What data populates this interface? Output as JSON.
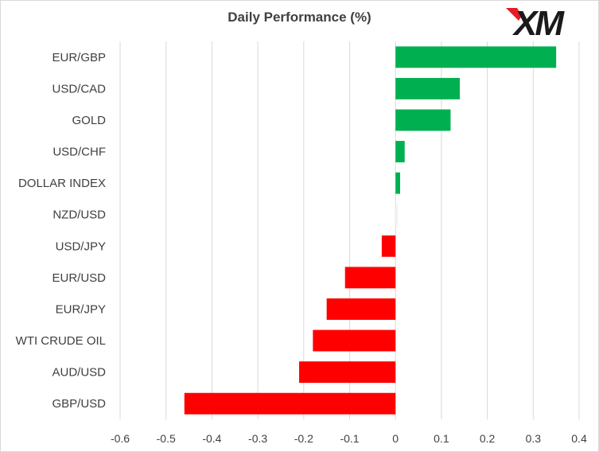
{
  "chart_data": {
    "type": "bar",
    "orientation": "horizontal",
    "title": "Daily Performance  (%)",
    "xlabel": "",
    "ylabel": "",
    "categories": [
      "EUR/GBP",
      "USD/CAD",
      "GOLD",
      "USD/CHF",
      "DOLLAR INDEX",
      "NZD/USD",
      "USD/JPY",
      "EUR/USD",
      "EUR/JPY",
      "WTI CRUDE OIL",
      "AUD/USD",
      "GBP/USD"
    ],
    "values": [
      0.35,
      0.14,
      0.12,
      0.02,
      0.01,
      0.0,
      -0.03,
      -0.11,
      -0.15,
      -0.18,
      -0.21,
      -0.46
    ],
    "xlim": [
      -0.6,
      0.4
    ],
    "xticks": [
      -0.6,
      -0.5,
      -0.4,
      -0.3,
      -0.2,
      -0.1,
      0,
      0.1,
      0.2,
      0.3,
      0.4
    ],
    "xtick_labels": [
      "-0.6",
      "-0.5",
      "-0.4",
      "-0.3",
      "-0.2",
      "-0.1",
      "0",
      "0.1",
      "0.2",
      "0.3",
      "0.4"
    ],
    "grid": "vertical",
    "legend": "none",
    "colors": {
      "positive": "#00b050",
      "negative": "#ff0000",
      "neutral": "#f2f2f2",
      "grid": "#d9d9d9"
    }
  },
  "logo": {
    "text": "XM",
    "color": "#1a1a1a",
    "accent": "#e41e26"
  }
}
